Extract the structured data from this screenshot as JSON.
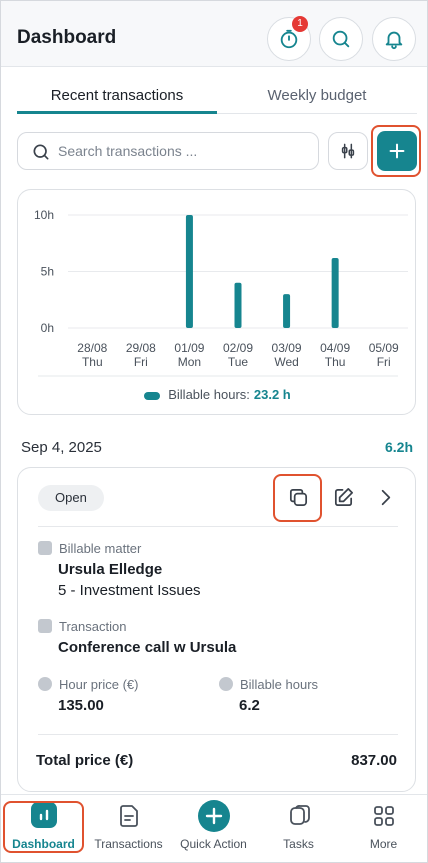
{
  "header": {
    "title": "Dashboard",
    "timer_badge": "1"
  },
  "tabs": [
    {
      "label": "Recent transactions",
      "active": true
    },
    {
      "label": "Weekly budget",
      "active": false
    }
  ],
  "search": {
    "placeholder": "Search transactions ..."
  },
  "chart_data": {
    "type": "bar",
    "categories": [
      "28/08",
      "29/08",
      "01/09",
      "02/09",
      "03/09",
      "04/09",
      "05/09"
    ],
    "weekdays": [
      "Thu",
      "Fri",
      "Mon",
      "Tue",
      "Wed",
      "Thu",
      "Fri"
    ],
    "series": [
      {
        "name": "Billable hours",
        "values": [
          0,
          0,
          10,
          4,
          3,
          6.2,
          0
        ]
      }
    ],
    "yticks": [
      "10h",
      "5h",
      "0h"
    ],
    "ylim": [
      0,
      10
    ],
    "legend": {
      "label": "Billable hours:",
      "total": "23.2 h",
      "position": "bottom"
    },
    "color": "#16858f"
  },
  "day": {
    "date": "Sep 4, 2025",
    "total": "6.2h"
  },
  "transaction": {
    "status": "Open",
    "matter_label": "Billable matter",
    "client": "Ursula Elledge",
    "matter": "5 - Investment Issues",
    "transaction_label": "Transaction",
    "description": "Conference call w Ursula",
    "price_label": "Hour price (€)",
    "price": "135.00",
    "hours_label": "Billable hours",
    "hours": "6.2",
    "total_label": "Total price (€)",
    "total": "837.00"
  },
  "nav": [
    {
      "label": "Dashboard",
      "icon": "chart-icon",
      "active": true
    },
    {
      "label": "Transactions",
      "icon": "document-icon",
      "active": false
    },
    {
      "label": "Quick Action",
      "icon": "plus-icon",
      "active": false
    },
    {
      "label": "Tasks",
      "icon": "tasks-icon",
      "active": false
    },
    {
      "label": "More",
      "icon": "grid-icon",
      "active": false
    }
  ],
  "colors": {
    "accent": "#16858f",
    "highlight": "#e0522f",
    "badge": "#e53935"
  }
}
